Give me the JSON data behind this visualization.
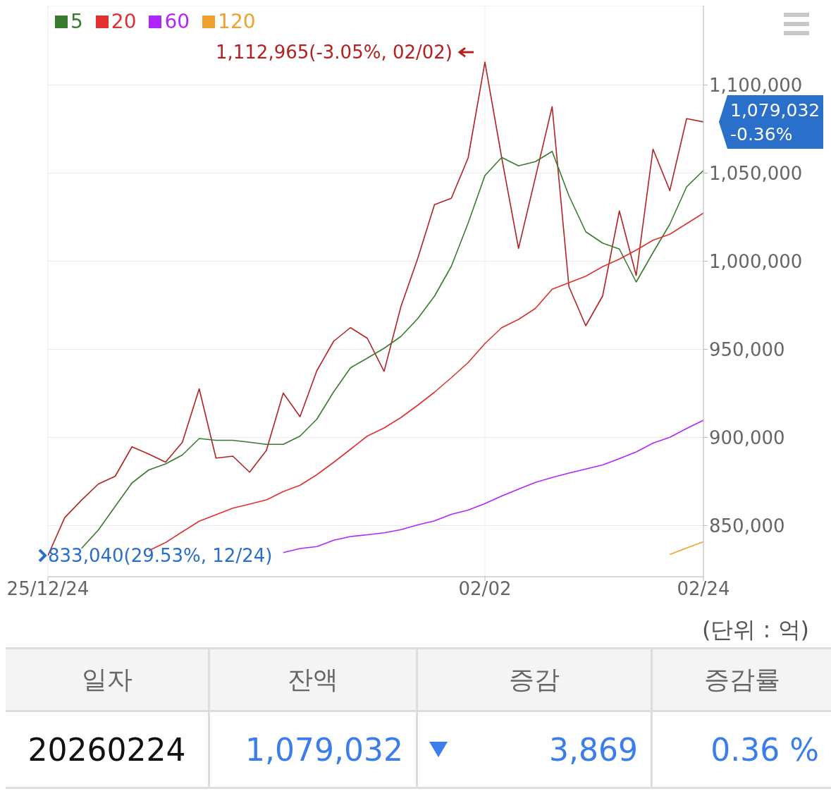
{
  "chart_data": [
    {
      "type": "line",
      "categories": [
        "25/12/24",
        null,
        null,
        null,
        null,
        null,
        null,
        null,
        null,
        null,
        null,
        null,
        null,
        null,
        null,
        null,
        null,
        null,
        null,
        null,
        null,
        null,
        null,
        null,
        null,
        null,
        "02/02",
        null,
        null,
        null,
        null,
        null,
        null,
        null,
        null,
        null,
        null,
        null,
        null,
        "02/24"
      ],
      "series": [
        {
          "color": "#b22222",
          "values": [
            833040,
            854540,
            864470,
            873600,
            878000,
            894700,
            890600,
            886000,
            897300,
            927600,
            888300,
            889400,
            880300,
            892700,
            925200,
            911800,
            937900,
            954600,
            962300,
            956300,
            937500,
            974200,
            1001500,
            1032100,
            1035700,
            1058600,
            1112965,
            1058600,
            1007300,
            1047400,
            1087700,
            985500,
            963400,
            980200,
            1028500,
            991900,
            1063600,
            1040100,
            1080900,
            1079032
          ]
        },
        {
          "name": "5",
          "color": "#3a7a30",
          "values": [
            null,
            null,
            837100,
            847500,
            860900,
            874200,
            881600,
            885000,
            890100,
            899400,
            898400,
            898400,
            897300,
            896100,
            896100,
            900800,
            910400,
            925900,
            939500,
            945000,
            950600,
            957300,
            967400,
            980200,
            997100,
            1021600,
            1048600,
            1058900,
            1054100,
            1056500,
            1062300,
            1037100,
            1016700,
            1010300,
            1006900,
            988200,
            1004900,
            1021000,
            1042200,
            1051500
          ]
        },
        {
          "name": "20",
          "color": "#e03030",
          "values": [
            null,
            null,
            null,
            null,
            null,
            null,
            835800,
            840400,
            846500,
            852500,
            856200,
            859900,
            862200,
            864600,
            869300,
            872900,
            878900,
            885900,
            893300,
            900800,
            905400,
            911300,
            918300,
            925700,
            933900,
            942500,
            953300,
            962300,
            967000,
            973200,
            984100,
            987800,
            991500,
            996900,
            1001200,
            1006300,
            1011900,
            1015300,
            1021300,
            1027300
          ]
        },
        {
          "name": "60",
          "color": "#b026ff",
          "values": [
            null,
            null,
            null,
            null,
            null,
            null,
            null,
            null,
            null,
            null,
            null,
            null,
            null,
            null,
            834700,
            837000,
            838100,
            841700,
            843800,
            844800,
            845900,
            847700,
            850400,
            852700,
            856400,
            858800,
            862500,
            866800,
            870700,
            874500,
            877300,
            879800,
            882100,
            884400,
            888000,
            891800,
            896800,
            900100,
            905100,
            909800
          ]
        },
        {
          "name": "120",
          "color": "#f0a030",
          "values": [
            null,
            null,
            null,
            null,
            null,
            null,
            null,
            null,
            null,
            null,
            null,
            null,
            null,
            null,
            null,
            null,
            null,
            null,
            null,
            null,
            null,
            null,
            null,
            null,
            null,
            null,
            null,
            null,
            null,
            null,
            null,
            null,
            null,
            null,
            null,
            null,
            null,
            833600,
            837300,
            840800
          ]
        }
      ],
      "ylim": [
        821000,
        1145000
      ],
      "yticks": [
        {
          "value": 850000,
          "label": "850,000"
        },
        {
          "value": 900000,
          "label": "900,000"
        },
        {
          "value": 950000,
          "label": "950,000"
        },
        {
          "value": 1000000,
          "label": "1,000,000"
        },
        {
          "value": 1050000,
          "label": "1,050,000"
        },
        {
          "value": 1100000,
          "label": "1,100,000"
        }
      ],
      "grid": true,
      "legend": "top left",
      "annotations": [
        {
          "text": "1,112,965(-3.05%, 02/02)",
          "x": "02/02",
          "y": 1112965
        },
        {
          "text": "833,040(29.53%, 12/24)",
          "x": "25/12/24",
          "y": 833040
        },
        {
          "text": "1,079,032\n-0.36%",
          "x": "02/24",
          "y": 1079032
        },
        "(단위 : 억)"
      ]
    },
    {
      "type": "other",
      "annotations": [
        "일자",
        "잔액",
        "증감",
        "증감률",
        "20260224",
        "1,079,032",
        "3,869",
        "0.36 %"
      ]
    }
  ]
}
